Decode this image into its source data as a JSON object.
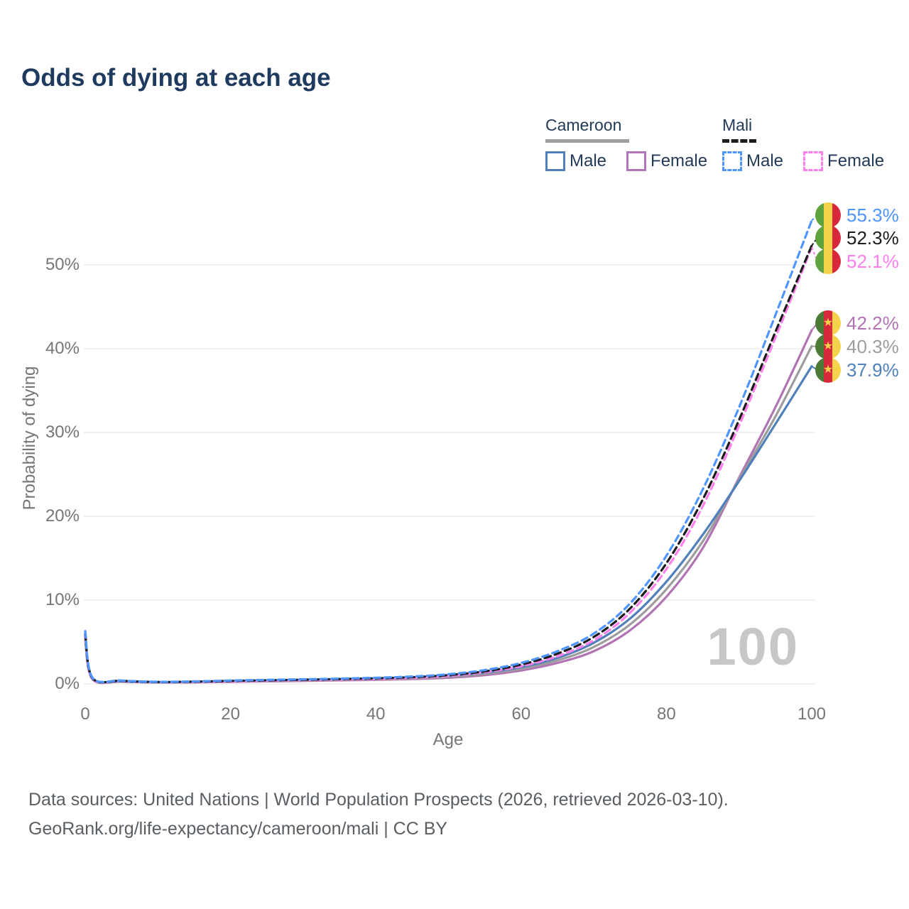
{
  "title": "Odds of dying at each age",
  "watermark_age": "100",
  "footer": {
    "line1": "Data sources: United Nations | World Population Prospects (2026, retrieved 2026-03-10).",
    "line2": "GeoRank.org/life-expectancy/cameroon/mali | CC BY"
  },
  "legend": {
    "groups": [
      {
        "name": "Cameroon",
        "style": "solid",
        "underline_color": "#9d9d9d",
        "underline_width": 118,
        "items": [
          {
            "label": "Male",
            "color": "#4f80ba"
          },
          {
            "label": "Female",
            "color": "#b173b3"
          }
        ]
      },
      {
        "name": "Mali",
        "style": "dashed",
        "underline_color": "#1c1c1c",
        "underline_width": 48,
        "items": [
          {
            "label": "Male",
            "color": "#4e95ff"
          },
          {
            "label": "Female",
            "color": "#ff80ed"
          }
        ]
      }
    ]
  },
  "chart_data": {
    "type": "line",
    "title": "Odds of dying at each age",
    "xlabel": "Age",
    "ylabel": "Probability of dying",
    "xlim": [
      0,
      100
    ],
    "ylim_pct": [
      0,
      57
    ],
    "grid": "horizontal",
    "x_ticks": [
      0,
      20,
      40,
      60,
      80,
      100
    ],
    "y_ticks": [
      "0%",
      "10%",
      "20%",
      "30%",
      "40%",
      "50%"
    ],
    "ages": [
      0,
      1,
      5,
      10,
      15,
      20,
      25,
      30,
      35,
      40,
      45,
      50,
      55,
      60,
      65,
      70,
      75,
      80,
      85,
      90,
      95,
      100
    ],
    "series": [
      {
        "id": "mali-male",
        "country": "Mali",
        "sex": "Male",
        "color": "#4e95ff",
        "line_style": "dashed",
        "end_label": "55.3%",
        "flag_icon": "mali-flag-icon",
        "values_pct": [
          6.3,
          0.75,
          0.4,
          0.25,
          0.3,
          0.4,
          0.48,
          0.55,
          0.63,
          0.73,
          0.88,
          1.15,
          1.65,
          2.5,
          3.9,
          6.0,
          9.6,
          15.3,
          23.2,
          33.0,
          44.0,
          55.3
        ]
      },
      {
        "id": "mali-overall",
        "country": "Mali",
        "sex": "Both sexes",
        "color": "#1c1c1c",
        "line_style": "dashed",
        "end_label": "52.3%",
        "flag_icon": "mali-flag-icon",
        "values_pct": [
          6.0,
          0.7,
          0.37,
          0.23,
          0.27,
          0.36,
          0.43,
          0.5,
          0.58,
          0.67,
          0.8,
          1.05,
          1.5,
          2.3,
          3.6,
          5.6,
          9.0,
          14.4,
          22.0,
          31.5,
          42.0,
          52.3
        ]
      },
      {
        "id": "mali-female",
        "country": "Mali",
        "sex": "Female",
        "color": "#ff80ed",
        "line_style": "dashed",
        "end_label": "52.1%",
        "flag_icon": "mali-flag-icon",
        "values_pct": [
          5.7,
          0.65,
          0.34,
          0.21,
          0.24,
          0.31,
          0.38,
          0.45,
          0.52,
          0.6,
          0.73,
          0.95,
          1.4,
          2.1,
          3.3,
          5.2,
          8.5,
          13.7,
          21.2,
          30.8,
          41.3,
          52.1
        ]
      },
      {
        "id": "cameroon-female",
        "country": "Cameroon",
        "sex": "Female",
        "color": "#b173b3",
        "line_style": "solid",
        "end_label": "42.2%",
        "flag_icon": "cameroon-flag-icon",
        "values_pct": [
          5.2,
          0.55,
          0.26,
          0.17,
          0.19,
          0.24,
          0.3,
          0.36,
          0.42,
          0.48,
          0.58,
          0.73,
          1.05,
          1.6,
          2.5,
          3.9,
          6.4,
          10.4,
          16.2,
          24.6,
          33.0,
          42.2
        ]
      },
      {
        "id": "cameroon-overall",
        "country": "Cameroon",
        "sex": "Both sexes",
        "color": "#9d9d9d",
        "line_style": "solid",
        "end_label": "40.3%",
        "flag_icon": "cameroon-flag-icon",
        "values_pct": [
          5.5,
          0.6,
          0.28,
          0.18,
          0.22,
          0.29,
          0.35,
          0.41,
          0.48,
          0.55,
          0.66,
          0.84,
          1.2,
          1.8,
          2.8,
          4.4,
          7.1,
          11.3,
          17.0,
          24.4,
          31.9,
          40.3
        ]
      },
      {
        "id": "cameroon-male",
        "country": "Cameroon",
        "sex": "Male",
        "color": "#4f80ba",
        "line_style": "solid",
        "end_label": "37.9%",
        "flag_icon": "cameroon-flag-icon",
        "values_pct": [
          5.8,
          0.65,
          0.3,
          0.2,
          0.25,
          0.33,
          0.4,
          0.47,
          0.55,
          0.63,
          0.75,
          0.95,
          1.35,
          2.0,
          3.1,
          4.9,
          7.8,
          12.2,
          17.8,
          24.2,
          31.0,
          37.9
        ]
      }
    ]
  }
}
